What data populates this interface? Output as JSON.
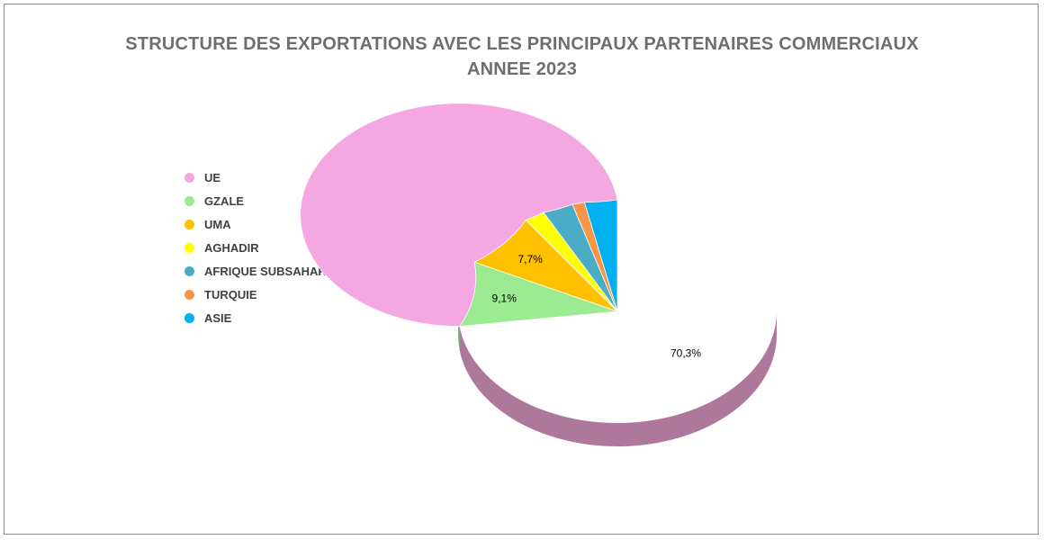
{
  "chart_data": {
    "type": "pie",
    "title": "STRUCTURE DES EXPORTATIONS AVEC LES PRINCIPAUX PARTENAIRES COMMERCIAUX",
    "subtitle": "ANNEE 2023",
    "legend_position": "left",
    "categories": [
      "UE",
      "GZALE",
      "UMA",
      "AGHADIR",
      "AFRIQUE SUBSAHARIENNE",
      "TURQUIE",
      "ASIE"
    ],
    "values": [
      70.3,
      9.1,
      7.7,
      2.0,
      3.0,
      1.2,
      3.2
    ],
    "data_labels": [
      "70,3%",
      "9,1%",
      "7,7%",
      "",
      "",
      "",
      ""
    ],
    "colors": [
      "#F4A7E0",
      "#9AEB91",
      "#FFC000",
      "#FFFF00",
      "#4BACC6",
      "#F79646",
      "#00B0F0"
    ],
    "side_colors": [
      "#AE789C",
      "#6FB868",
      "#C79500",
      "#C8C800",
      "#357F93",
      "#B86E34",
      "#0085B5"
    ]
  }
}
